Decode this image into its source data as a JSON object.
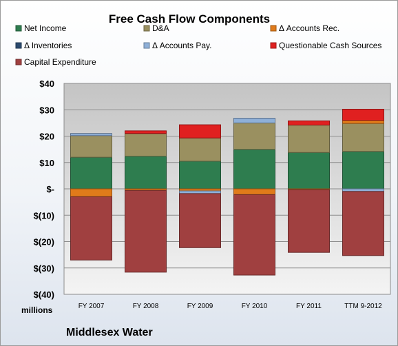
{
  "chart_data": {
    "type": "bar",
    "stacked": true,
    "title": "Free Cash Flow Components",
    "units_label": "millions",
    "company": "Middlesex Water",
    "categories": [
      "FY 2007",
      "FY 2008",
      "FY 2009",
      "FY 2010",
      "FY 2011",
      "TTM 9-2012"
    ],
    "ylim": [
      -40,
      40
    ],
    "yticks": [
      40,
      30,
      20,
      10,
      0,
      -10,
      -20,
      -30,
      -40
    ],
    "ytick_labels": [
      "$40",
      "$30",
      "$20",
      "$10",
      "$-",
      "$(10)",
      "$(20)",
      "$(30)",
      "$(40)"
    ],
    "grid": true,
    "legend_position": "top",
    "series": [
      {
        "name": "Net Income",
        "color": "#2e7d4f",
        "values": [
          12,
          12.4,
          10.5,
          15,
          13.8,
          14.2
        ]
      },
      {
        "name": "D&A",
        "color": "#9a9060",
        "values": [
          8.2,
          8.6,
          8.8,
          10,
          10.4,
          10.6
        ]
      },
      {
        "name": "Δ Accounts Rec.",
        "color": "#e07b1a",
        "values": [
          -3,
          -0.6,
          -0.8,
          -2.2,
          -0.3,
          1.2
        ]
      },
      {
        "name": "Δ Inventories",
        "color": "#2b4a6e",
        "values": [
          0,
          0,
          0,
          0,
          0,
          0
        ]
      },
      {
        "name": "Δ Accounts Pay.",
        "color": "#8fb0d8",
        "values": [
          0.8,
          0,
          -1,
          1.8,
          0,
          -1
        ]
      },
      {
        "name": "Questionable Cash Sources",
        "color": "#e02020",
        "values": [
          0,
          1,
          5,
          0,
          1.6,
          4.2
        ]
      },
      {
        "name": "Capital Expenditure",
        "color": "#a04040",
        "values": [
          -24,
          -31,
          -20.5,
          -30.5,
          -23.8,
          -24.3
        ]
      }
    ]
  }
}
